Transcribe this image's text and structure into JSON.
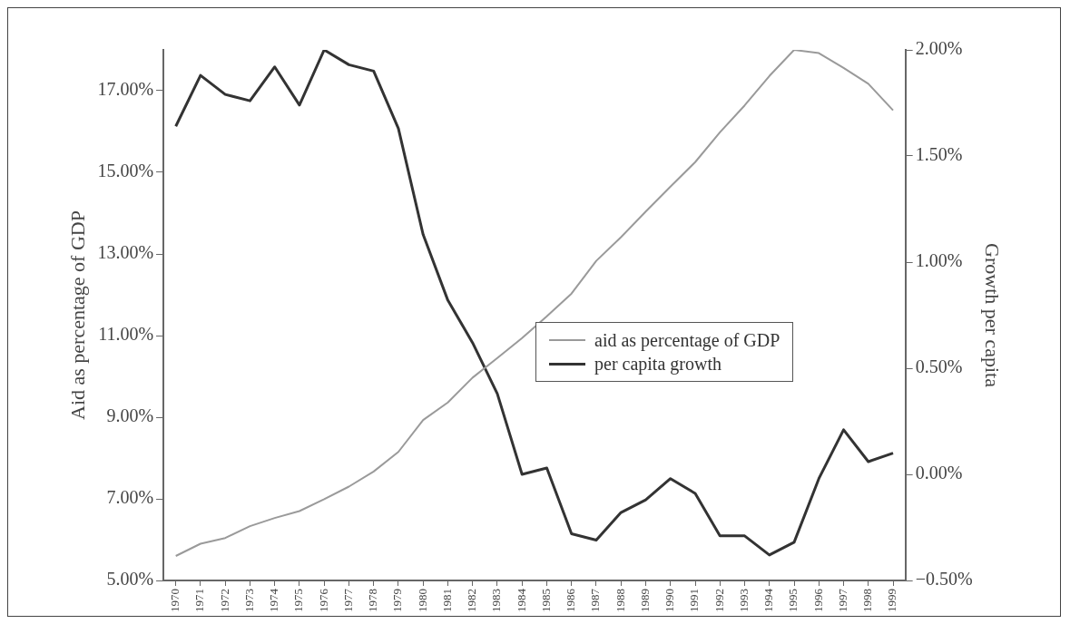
{
  "chart_data": {
    "type": "line",
    "ylabel": "Aid as percentage of GDP",
    "y2label": "Growth per capita",
    "categories": [
      "1970",
      "1971",
      "1972",
      "1973",
      "1974",
      "1975",
      "1976",
      "1977",
      "1978",
      "1979",
      "1980",
      "1981",
      "1982",
      "1983",
      "1984",
      "1985",
      "1986",
      "1987",
      "1988",
      "1989",
      "1990",
      "1991",
      "1992",
      "1993",
      "1994",
      "1995",
      "1996",
      "1997",
      "1998",
      "1999"
    ],
    "series": [
      {
        "name": "aid as percentage of GDP",
        "color": "#9a9a9a",
        "values": [
          5.6,
          5.9,
          6.04,
          6.33,
          6.53,
          6.7,
          6.99,
          7.3,
          7.67,
          8.15,
          8.93,
          9.36,
          9.97,
          10.45,
          10.94,
          11.47,
          12.03,
          12.83,
          13.41,
          14.04,
          14.65,
          15.25,
          15.98,
          16.64,
          17.36,
          18.0,
          17.92,
          17.56,
          17.17,
          16.52
        ]
      },
      {
        "name": "per capita growth",
        "color": "#333333",
        "axis": "y2",
        "values": [
          1.64,
          1.88,
          1.79,
          1.76,
          1.92,
          1.74,
          2.0,
          1.93,
          1.9,
          1.63,
          1.13,
          0.82,
          0.62,
          0.38,
          0.0,
          0.03,
          -0.28,
          -0.31,
          -0.18,
          -0.12,
          -0.02,
          -0.09,
          -0.29,
          -0.29,
          -0.38,
          -0.32,
          -0.02,
          0.21,
          0.06,
          0.1
        ]
      }
    ],
    "ylim": [
      5,
      18
    ],
    "yticks": [
      {
        "value": 5,
        "label": "5.00%"
      },
      {
        "value": 7,
        "label": "7.00%"
      },
      {
        "value": 9,
        "label": "9.00%"
      },
      {
        "value": 11,
        "label": "11.00%"
      },
      {
        "value": 13,
        "label": "13.00%"
      },
      {
        "value": 15,
        "label": "15.00%"
      },
      {
        "value": 17,
        "label": "17.00%"
      }
    ],
    "y2lim": [
      -0.5,
      2
    ],
    "y2ticks": [
      {
        "value": -0.5,
        "label": "−0.50%"
      },
      {
        "value": 0,
        "label": "0.00%"
      },
      {
        "value": 0.5,
        "label": "0.50%"
      },
      {
        "value": 1,
        "label": "1.00%"
      },
      {
        "value": 1.5,
        "label": "1.50%"
      },
      {
        "value": 2,
        "label": "2.00%"
      }
    ],
    "grid": false,
    "legend": "center right",
    "marker": "none",
    "line_style": "solid"
  }
}
